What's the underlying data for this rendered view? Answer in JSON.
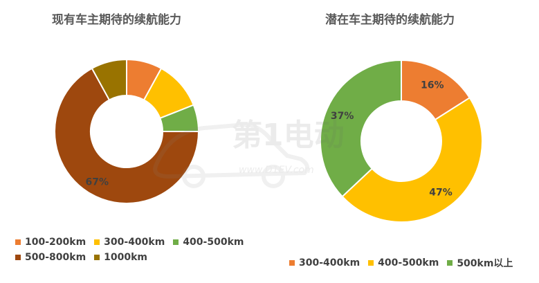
{
  "chart_data": [
    {
      "type": "pie",
      "title": "现有车主期待的续航能力",
      "categories": [
        "100-200km",
        "300-400km",
        "400-500km",
        "500-800km",
        "1000km"
      ],
      "values": [
        8,
        11,
        6,
        67,
        8
      ],
      "data_labels": [
        "",
        "",
        "",
        "67%",
        ""
      ],
      "colors": [
        "#ED7D31",
        "#FFC000",
        "#70AD47",
        "#9E480E",
        "#997300"
      ],
      "legend_rows": [
        [
          "100-200km",
          "300-400km",
          "400-500km"
        ],
        [
          "500-800km",
          "1000km"
        ]
      ]
    },
    {
      "type": "pie",
      "title": "潜在车主期待的续航能力",
      "categories": [
        "300-400km",
        "400-500km",
        "500km以上"
      ],
      "values": [
        16,
        47,
        37
      ],
      "data_labels": [
        "16%",
        "47%",
        "37%"
      ],
      "colors": [
        "#ED7D31",
        "#FFC000",
        "#70AD47"
      ],
      "legend_rows": [
        [
          "300-400km",
          "400-500km",
          "500km以上"
        ]
      ]
    }
  ],
  "watermark": {
    "brand": "第1电动",
    "site": "www.D1EV.com"
  }
}
